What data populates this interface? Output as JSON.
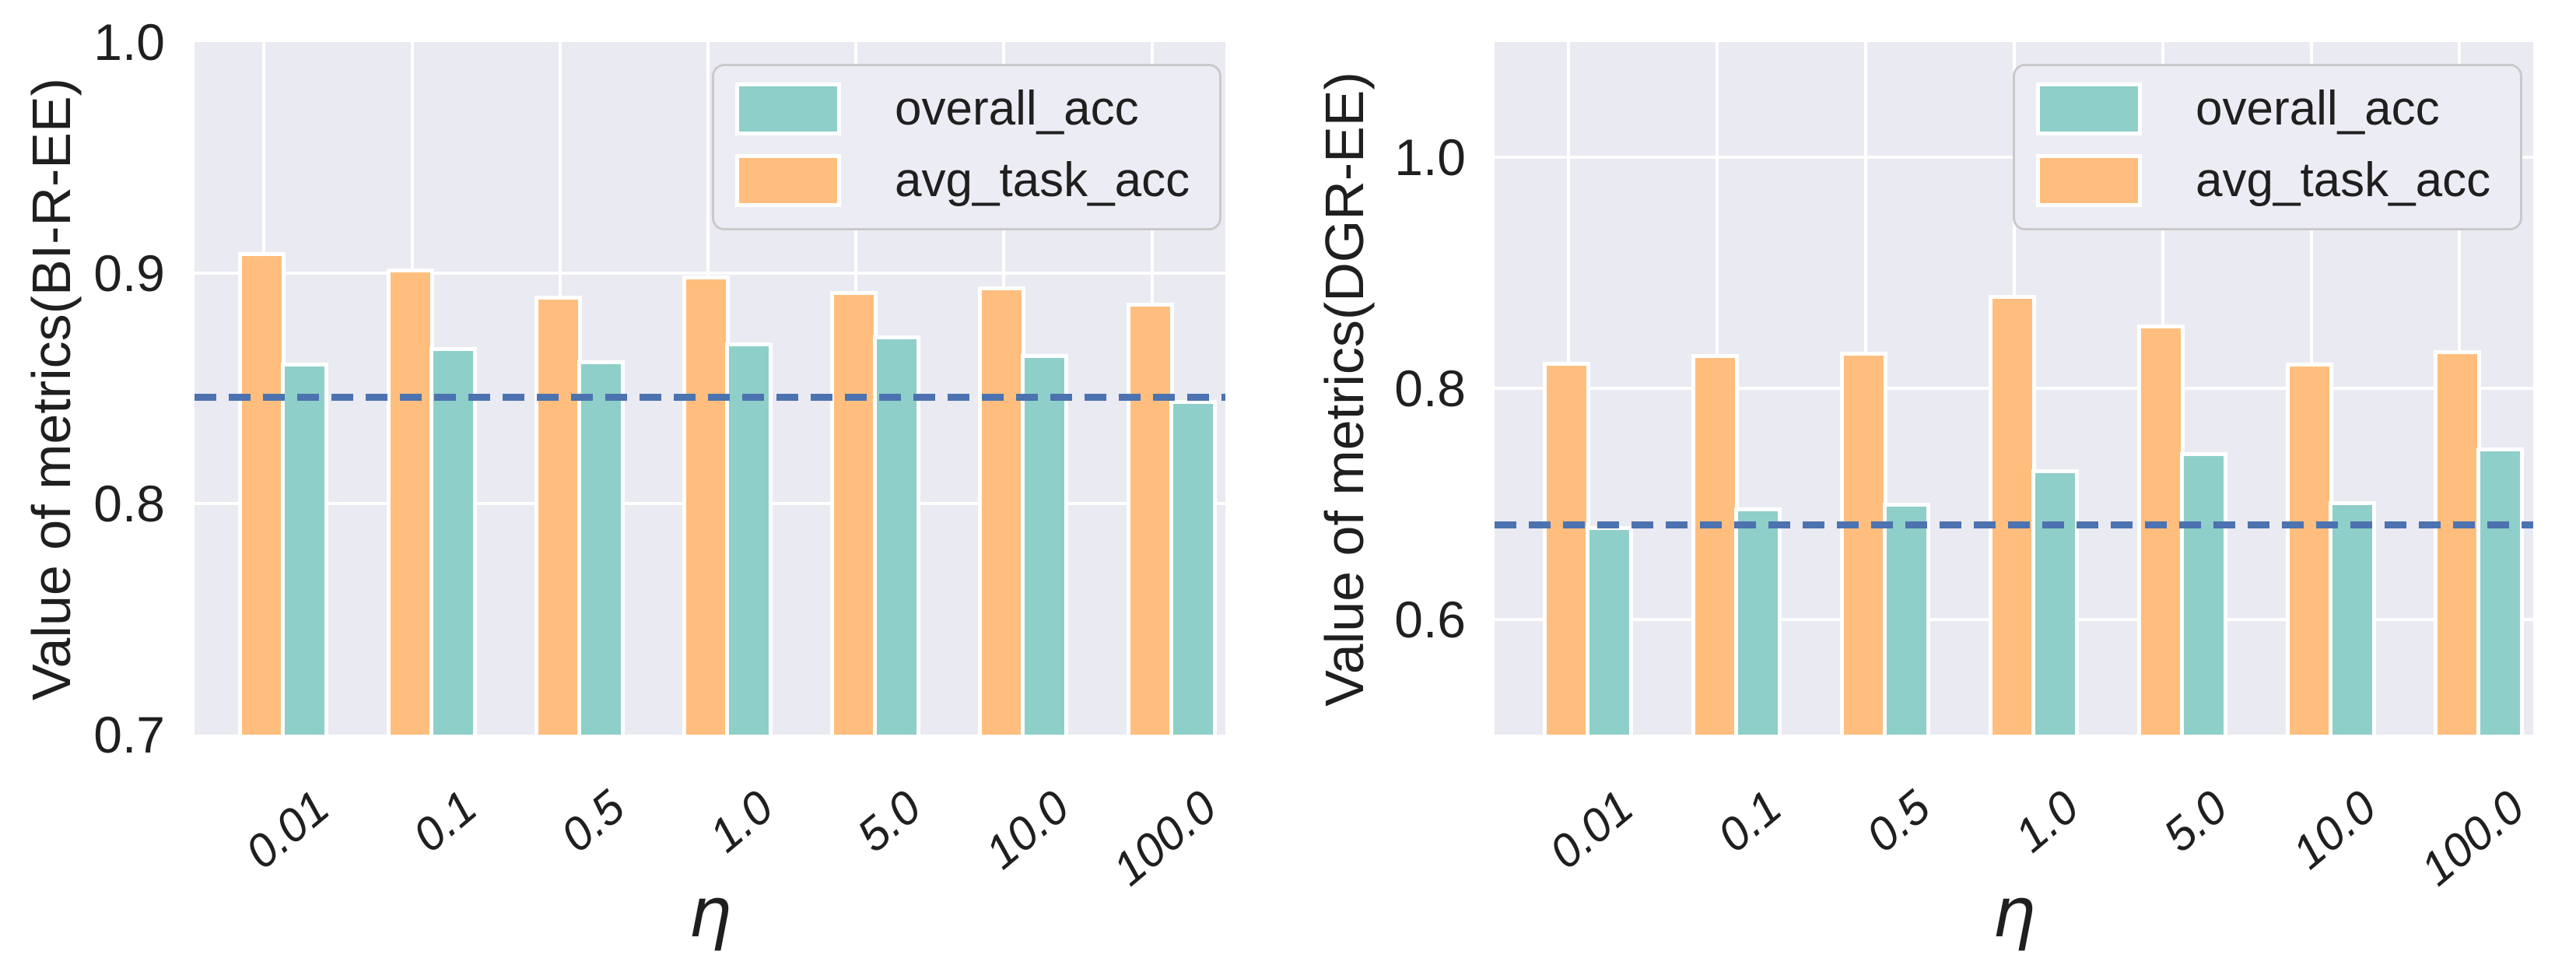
{
  "colors": {
    "overall_acc": "#8ECFC9",
    "avg_task_acc": "#FFBE7D",
    "baseline_line": "#4C72B0",
    "plot_background": "#EAEAF2",
    "gridline": "#FFFFFF",
    "bar_edge": "#FFFFFF",
    "text": "#1F1F1F",
    "legend_background": "#ECECF4",
    "legend_border": "#C9C9C9"
  },
  "legend": {
    "items": [
      {
        "label": "overall_acc",
        "series": "overall_acc"
      },
      {
        "label": "avg_task_acc",
        "series": "avg_task_acc"
      }
    ],
    "position": "upper right"
  },
  "chart_data": [
    {
      "type": "bar",
      "title": "",
      "ylabel": "Value of metrics(BI-R-EE)",
      "xlabel": "η",
      "categories": [
        "0.01",
        "0.1",
        "0.5",
        "1.0",
        "5.0",
        "10.0",
        "100.0"
      ],
      "series": [
        {
          "name": "overall_acc",
          "values": [
            0.861,
            0.868,
            0.862,
            0.87,
            0.873,
            0.865,
            0.845
          ]
        },
        {
          "name": "avg_task_acc",
          "values": [
            0.909,
            0.902,
            0.89,
            0.899,
            0.892,
            0.894,
            0.887
          ]
        }
      ],
      "bar_order": [
        "avg_task_acc",
        "overall_acc"
      ],
      "baseline": 0.846,
      "baseline_style": "dashed",
      "ylim": [
        0.7,
        1.0
      ],
      "yticks": [
        1.0,
        0.9,
        0.8,
        0.7
      ],
      "ytick_labels": [
        "1.0",
        "0.9",
        "0.8",
        "0.7"
      ],
      "grid": true,
      "legend_position": "upper right"
    },
    {
      "type": "bar",
      "title": "",
      "ylabel": "Value of metrics(DGR-EE)",
      "xlabel": "η",
      "categories": [
        "0.01",
        "0.1",
        "0.5",
        "1.0",
        "5.0",
        "10.0",
        "100.0"
      ],
      "series": [
        {
          "name": "overall_acc",
          "values": [
            0.681,
            0.697,
            0.701,
            0.73,
            0.745,
            0.702,
            0.749
          ]
        },
        {
          "name": "avg_task_acc",
          "values": [
            0.823,
            0.83,
            0.832,
            0.881,
            0.855,
            0.822,
            0.833
          ]
        }
      ],
      "bar_order": [
        "avg_task_acc",
        "overall_acc"
      ],
      "baseline": 0.682,
      "baseline_style": "dashed",
      "ylim": [
        0.5,
        1.1
      ],
      "yticks": [
        1.0,
        0.8,
        0.6
      ],
      "ytick_labels": [
        "1.0",
        "0.8",
        "0.6"
      ],
      "grid": true,
      "legend_position": "upper right"
    }
  ]
}
